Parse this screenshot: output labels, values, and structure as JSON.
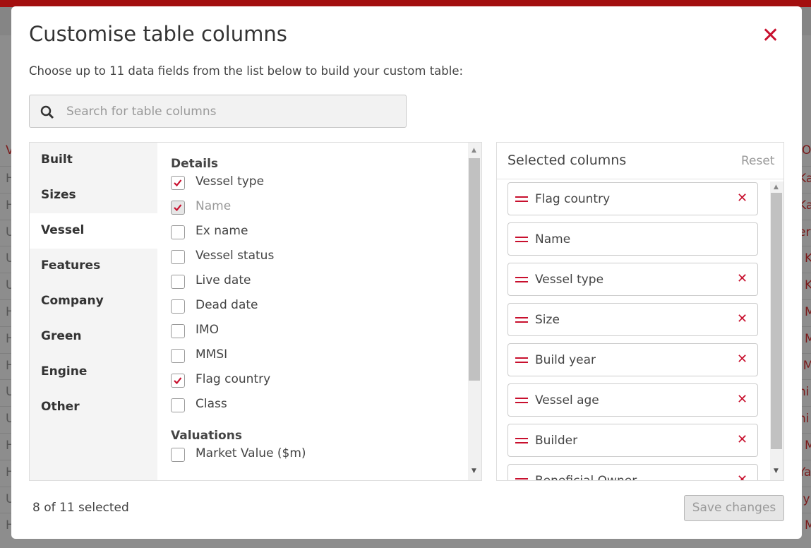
{
  "background": {
    "left_header": "V",
    "left_cells": [
      "H",
      "H",
      "U",
      "U",
      "U",
      "H",
      "H",
      "H",
      "U",
      "U",
      "H",
      "H",
      "U",
      "H"
    ],
    "right_header": "O",
    "right_cells": [
      "Ka",
      "Ka",
      "er",
      "K",
      "K",
      "M",
      "M",
      "o M",
      "hi",
      "hi",
      "M",
      "Ya",
      "hiy",
      "M"
    ]
  },
  "modal": {
    "title": "Customise table columns",
    "description": "Choose up to 11 data fields from the list below to build your custom table:",
    "search": {
      "placeholder": "Search for table columns"
    },
    "categories": [
      {
        "label": "Built",
        "active": false
      },
      {
        "label": "Sizes",
        "active": false
      },
      {
        "label": "Vessel",
        "active": true
      },
      {
        "label": "Features",
        "active": false
      },
      {
        "label": "Company",
        "active": false
      },
      {
        "label": "Green",
        "active": false
      },
      {
        "label": "Engine",
        "active": false
      },
      {
        "label": "Other",
        "active": false
      }
    ],
    "groups": [
      {
        "title": "Details",
        "items": [
          {
            "label": "Vessel type",
            "checked": true,
            "disabled": false
          },
          {
            "label": "Name",
            "checked": true,
            "disabled": true
          },
          {
            "label": "Ex name",
            "checked": false,
            "disabled": false
          },
          {
            "label": "Vessel status",
            "checked": false,
            "disabled": false
          },
          {
            "label": "Live date",
            "checked": false,
            "disabled": false
          },
          {
            "label": "Dead date",
            "checked": false,
            "disabled": false
          },
          {
            "label": "IMO",
            "checked": false,
            "disabled": false
          },
          {
            "label": "MMSI",
            "checked": false,
            "disabled": false
          },
          {
            "label": "Flag country",
            "checked": true,
            "disabled": false
          },
          {
            "label": "Class",
            "checked": false,
            "disabled": false
          }
        ]
      },
      {
        "title": "Valuations",
        "items": [
          {
            "label": "Market Value ($m)",
            "checked": false,
            "disabled": false
          }
        ]
      }
    ],
    "selected": {
      "title": "Selected columns",
      "reset": "Reset",
      "items": [
        {
          "label": "Flag country",
          "removable": true
        },
        {
          "label": "Name",
          "removable": false
        },
        {
          "label": "Vessel type",
          "removable": true
        },
        {
          "label": "Size",
          "removable": true
        },
        {
          "label": "Build year",
          "removable": true
        },
        {
          "label": "Vessel age",
          "removable": true
        },
        {
          "label": "Builder",
          "removable": true
        },
        {
          "label": "Beneficial Owner",
          "removable": true
        }
      ]
    },
    "footer": {
      "count": "8 of 11 selected",
      "save": "Save changes"
    }
  }
}
